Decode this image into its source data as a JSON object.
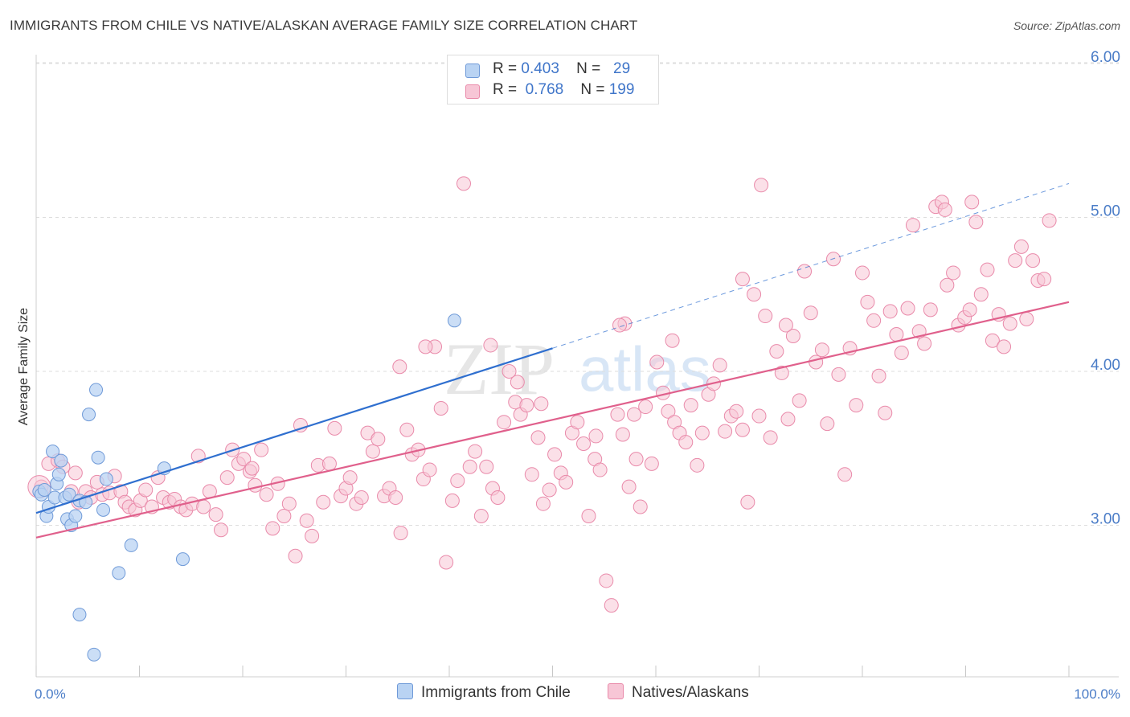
{
  "title": "IMMIGRANTS FROM CHILE VS NATIVE/ALASKAN AVERAGE FAMILY SIZE CORRELATION CHART",
  "source": "Source: ZipAtlas.com",
  "watermark": {
    "zip": "ZIP",
    "atlas": "atlas"
  },
  "legend_top": {
    "rows": [
      {
        "r_label": "R =",
        "r_value": "0.403",
        "n_label": "N =",
        "n_value": "29"
      },
      {
        "r_label": "R =",
        "r_value": "0.768",
        "n_label": "N =",
        "n_value": "199"
      }
    ]
  },
  "legend_bottom": {
    "items": [
      {
        "label": "Immigrants from Chile"
      },
      {
        "label": "Natives/Alaskans"
      }
    ]
  },
  "colors": {
    "blue_fill": "#b9d3f3",
    "blue_stroke": "#6f9ad8",
    "blue_line": "#2f6fcf",
    "pink_fill": "#f7c6d6",
    "pink_stroke": "#e98aaa",
    "pink_line": "#e0608c",
    "tick_text": "#4a7cc7",
    "grid": "#dddddd"
  },
  "chart_data": {
    "type": "scatter",
    "xlabel": "",
    "ylabel": "Average Family Size",
    "xlim": [
      0,
      100
    ],
    "ylim": [
      2.0,
      6.1
    ],
    "x_tick_labels": [
      "0.0%",
      "100.0%"
    ],
    "y_ticks": [
      3.0,
      4.0,
      5.0,
      6.0
    ],
    "y_tick_labels": [
      "3.00",
      "4.00",
      "5.00",
      "6.00"
    ],
    "grid": "horizontal-dashed",
    "legend_position": "top-center",
    "series": [
      {
        "name": "Immigrants from Chile",
        "color": "#b9d3f3",
        "r": 0.403,
        "n": 29,
        "trend": {
          "x": [
            0,
            50
          ],
          "y": [
            3.08,
            4.15
          ],
          "extended_to": [
            100,
            5.22
          ]
        },
        "points": [
          [
            0.3,
            3.22
          ],
          [
            0.5,
            3.2
          ],
          [
            0.8,
            3.23
          ],
          [
            1.0,
            3.06
          ],
          [
            1.2,
            3.12
          ],
          [
            1.6,
            3.48
          ],
          [
            1.8,
            3.18
          ],
          [
            2.0,
            3.27
          ],
          [
            2.2,
            3.33
          ],
          [
            2.4,
            3.42
          ],
          [
            2.8,
            3.18
          ],
          [
            3.2,
            3.2
          ],
          [
            3.0,
            3.04
          ],
          [
            3.4,
            3.0
          ],
          [
            3.8,
            3.06
          ],
          [
            4.2,
            3.16
          ],
          [
            4.8,
            3.15
          ],
          [
            5.1,
            3.72
          ],
          [
            5.8,
            3.88
          ],
          [
            6.0,
            3.44
          ],
          [
            6.8,
            3.3
          ],
          [
            6.5,
            3.1
          ],
          [
            8.0,
            2.69
          ],
          [
            9.2,
            2.87
          ],
          [
            12.4,
            3.37
          ],
          [
            14.2,
            2.78
          ],
          [
            4.2,
            2.42
          ],
          [
            5.6,
            2.16
          ],
          [
            40.5,
            4.33
          ]
        ]
      },
      {
        "name": "Natives/Alaskans",
        "color": "#f7c6d6",
        "r": 0.768,
        "n": 199,
        "trend": {
          "x": [
            0,
            100
          ],
          "y": [
            2.92,
            4.45
          ]
        },
        "points": [
          [
            0.5,
            3.25
          ],
          [
            1.2,
            3.4
          ],
          [
            2.1,
            3.42
          ],
          [
            2.6,
            3.38
          ],
          [
            3.4,
            3.22
          ],
          [
            3.8,
            3.34
          ],
          [
            4.1,
            3.15
          ],
          [
            4.8,
            3.22
          ],
          [
            5.3,
            3.18
          ],
          [
            5.9,
            3.28
          ],
          [
            6.4,
            3.2
          ],
          [
            7.1,
            3.21
          ],
          [
            7.6,
            3.32
          ],
          [
            8.2,
            3.22
          ],
          [
            8.6,
            3.15
          ],
          [
            9.0,
            3.12
          ],
          [
            9.6,
            3.1
          ],
          [
            10.1,
            3.16
          ],
          [
            10.6,
            3.23
          ],
          [
            11.2,
            3.12
          ],
          [
            11.8,
            3.31
          ],
          [
            12.3,
            3.18
          ],
          [
            12.9,
            3.15
          ],
          [
            13.4,
            3.17
          ],
          [
            14.0,
            3.12
          ],
          [
            14.5,
            3.1
          ],
          [
            15.1,
            3.14
          ],
          [
            15.7,
            3.45
          ],
          [
            16.2,
            3.12
          ],
          [
            16.8,
            3.22
          ],
          [
            17.4,
            3.07
          ],
          [
            17.9,
            2.97
          ],
          [
            18.5,
            3.31
          ],
          [
            19.0,
            3.49
          ],
          [
            19.6,
            3.4
          ],
          [
            20.1,
            3.43
          ],
          [
            20.7,
            3.35
          ],
          [
            21.2,
            3.26
          ],
          [
            21.8,
            3.49
          ],
          [
            22.3,
            3.2
          ],
          [
            22.9,
            2.98
          ],
          [
            23.4,
            3.27
          ],
          [
            24.0,
            3.06
          ],
          [
            24.5,
            3.14
          ],
          [
            25.1,
            2.8
          ],
          [
            25.6,
            3.65
          ],
          [
            26.2,
            3.03
          ],
          [
            26.7,
            2.93
          ],
          [
            27.3,
            3.39
          ],
          [
            27.8,
            3.15
          ],
          [
            28.4,
            3.4
          ],
          [
            28.9,
            3.63
          ],
          [
            29.5,
            3.19
          ],
          [
            30.0,
            3.24
          ],
          [
            30.4,
            3.31
          ],
          [
            31.0,
            3.14
          ],
          [
            31.5,
            3.18
          ],
          [
            32.1,
            3.6
          ],
          [
            32.6,
            3.48
          ],
          [
            33.1,
            3.56
          ],
          [
            33.7,
            3.19
          ],
          [
            34.2,
            3.24
          ],
          [
            34.8,
            3.18
          ],
          [
            35.3,
            2.95
          ],
          [
            35.9,
            3.62
          ],
          [
            36.4,
            3.46
          ],
          [
            37.0,
            3.49
          ],
          [
            37.5,
            3.3
          ],
          [
            38.1,
            3.36
          ],
          [
            38.6,
            4.16
          ],
          [
            39.2,
            3.76
          ],
          [
            39.7,
            2.76
          ],
          [
            40.3,
            3.16
          ],
          [
            40.8,
            3.29
          ],
          [
            41.4,
            5.22
          ],
          [
            42.0,
            3.38
          ],
          [
            42.5,
            3.48
          ],
          [
            43.1,
            3.06
          ],
          [
            43.6,
            3.38
          ],
          [
            44.2,
            3.24
          ],
          [
            44.7,
            3.18
          ],
          [
            45.3,
            3.67
          ],
          [
            45.8,
            4.0
          ],
          [
            46.4,
            3.8
          ],
          [
            46.9,
            3.72
          ],
          [
            47.5,
            3.78
          ],
          [
            48.0,
            3.33
          ],
          [
            48.6,
            3.57
          ],
          [
            49.1,
            3.14
          ],
          [
            49.7,
            3.23
          ],
          [
            50.2,
            3.46
          ],
          [
            50.8,
            3.34
          ],
          [
            51.3,
            3.28
          ],
          [
            51.9,
            3.6
          ],
          [
            52.4,
            3.67
          ],
          [
            53.0,
            3.53
          ],
          [
            53.5,
            3.06
          ],
          [
            54.1,
            3.43
          ],
          [
            54.6,
            3.36
          ],
          [
            55.2,
            2.64
          ],
          [
            55.7,
            2.48
          ],
          [
            56.3,
            3.72
          ],
          [
            56.8,
            3.59
          ],
          [
            57.4,
            3.25
          ],
          [
            57.9,
            3.72
          ],
          [
            58.5,
            3.12
          ],
          [
            59.0,
            3.77
          ],
          [
            59.6,
            3.4
          ],
          [
            60.1,
            4.06
          ],
          [
            60.7,
            3.86
          ],
          [
            61.2,
            3.74
          ],
          [
            61.8,
            3.67
          ],
          [
            62.3,
            3.6
          ],
          [
            62.9,
            3.54
          ],
          [
            63.4,
            3.78
          ],
          [
            64.0,
            3.39
          ],
          [
            64.5,
            3.6
          ],
          [
            65.1,
            3.85
          ],
          [
            65.6,
            3.92
          ],
          [
            66.2,
            4.04
          ],
          [
            66.7,
            3.61
          ],
          [
            67.3,
            3.71
          ],
          [
            67.8,
            3.74
          ],
          [
            68.4,
            3.62
          ],
          [
            68.9,
            3.15
          ],
          [
            69.5,
            4.5
          ],
          [
            70.0,
            3.71
          ],
          [
            70.6,
            4.36
          ],
          [
            71.1,
            3.57
          ],
          [
            71.7,
            4.13
          ],
          [
            72.2,
            3.99
          ],
          [
            72.8,
            3.69
          ],
          [
            73.3,
            4.23
          ],
          [
            73.9,
            3.81
          ],
          [
            74.4,
            4.65
          ],
          [
            75.0,
            4.38
          ],
          [
            75.5,
            4.06
          ],
          [
            76.1,
            4.14
          ],
          [
            76.6,
            3.66
          ],
          [
            77.2,
            4.73
          ],
          [
            77.7,
            3.98
          ],
          [
            78.3,
            3.33
          ],
          [
            78.8,
            4.15
          ],
          [
            79.4,
            3.78
          ],
          [
            80.0,
            4.64
          ],
          [
            80.5,
            4.45
          ],
          [
            81.1,
            4.33
          ],
          [
            81.6,
            3.97
          ],
          [
            82.2,
            3.73
          ],
          [
            82.7,
            4.39
          ],
          [
            83.3,
            4.24
          ],
          [
            83.8,
            4.12
          ],
          [
            84.4,
            4.41
          ],
          [
            84.9,
            4.95
          ],
          [
            85.5,
            4.26
          ],
          [
            86.0,
            4.18
          ],
          [
            86.6,
            4.4
          ],
          [
            87.1,
            5.07
          ],
          [
            87.7,
            5.1
          ],
          [
            88.2,
            4.56
          ],
          [
            88.8,
            4.64
          ],
          [
            89.3,
            4.3
          ],
          [
            89.9,
            4.35
          ],
          [
            90.4,
            4.4
          ],
          [
            91.0,
            4.97
          ],
          [
            91.5,
            4.5
          ],
          [
            92.1,
            4.66
          ],
          [
            92.6,
            4.2
          ],
          [
            93.2,
            4.37
          ],
          [
            93.7,
            4.16
          ],
          [
            94.3,
            4.31
          ],
          [
            94.8,
            4.72
          ],
          [
            95.4,
            4.81
          ],
          [
            95.9,
            4.34
          ],
          [
            96.5,
            4.72
          ],
          [
            97.0,
            4.59
          ],
          [
            97.6,
            4.6
          ],
          [
            98.1,
            4.98
          ],
          [
            68.4,
            4.6
          ],
          [
            72.6,
            4.3
          ],
          [
            61.6,
            4.2
          ],
          [
            57.0,
            4.31
          ],
          [
            56.5,
            4.3
          ],
          [
            70.2,
            5.21
          ],
          [
            88.0,
            5.05
          ],
          [
            90.6,
            5.1
          ],
          [
            58.1,
            3.43
          ],
          [
            54.2,
            3.58
          ],
          [
            48.9,
            3.79
          ],
          [
            46.6,
            3.93
          ],
          [
            44.0,
            4.17
          ],
          [
            37.7,
            4.16
          ],
          [
            35.2,
            4.03
          ],
          [
            20.9,
            3.37
          ]
        ]
      }
    ]
  }
}
